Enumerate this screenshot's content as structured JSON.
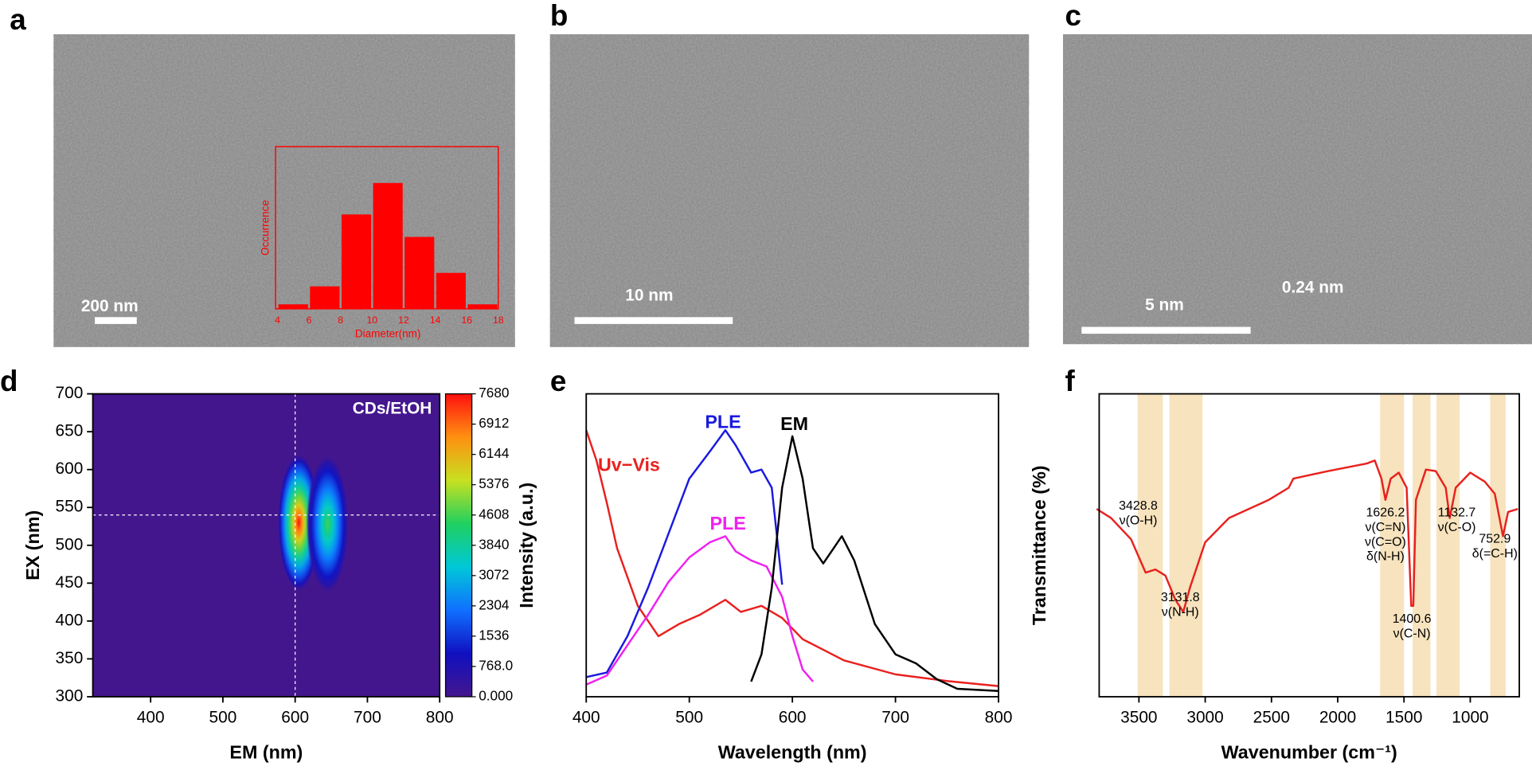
{
  "chart_data": [
    {
      "type": "histogram",
      "panel": "a",
      "scale_bar": "200 nm",
      "x_label": "Diameter(nm)",
      "y_label": "Occurrence",
      "bins": [
        4,
        6,
        8,
        10,
        12,
        14,
        16,
        18
      ],
      "values": [
        1,
        5,
        21,
        28,
        16,
        8,
        1
      ],
      "ylim": [
        0,
        35
      ],
      "color": "#ff0000"
    },
    {
      "type": "image",
      "panel": "b",
      "scale_bar": "10 nm"
    },
    {
      "type": "image",
      "panel": "c",
      "scale_bar": "5 nm",
      "annotation": "0.24 nm"
    },
    {
      "type": "heatmap",
      "panel": "d",
      "annotation": "CDs/EtOH",
      "x_label": "EM (nm)",
      "y_label": "EX (nm)",
      "xlim": [
        320,
        800
      ],
      "xticks": [
        400,
        500,
        600,
        700,
        800
      ],
      "ylim": [
        300,
        700
      ],
      "yticks": [
        300,
        350,
        400,
        450,
        500,
        550,
        600,
        650,
        700
      ],
      "background": "#44168d",
      "peaks": [
        {
          "em": 605,
          "ex": 530,
          "intensity": 7680
        },
        {
          "em": 645,
          "ex": 528,
          "intensity": 4600
        }
      ],
      "crosshair": {
        "em": 600,
        "ex": 540
      },
      "colorbar": {
        "lim": [
          0,
          7680
        ],
        "colors": [
          "#44168d",
          "#1010c0",
          "#1070ff",
          "#00c8d8",
          "#20d060",
          "#c8e020",
          "#ff9010",
          "#ff1010"
        ],
        "ticks": [
          {
            "value": 0,
            "label": "0.000"
          },
          {
            "value": 768,
            "label": "768.0"
          },
          1536,
          2304,
          3072,
          3840,
          4608,
          5376,
          6144,
          6912,
          7680
        ]
      }
    },
    {
      "type": "line",
      "panel": "e",
      "x_label": "Wavelength (nm)",
      "y_label": "Intensity (a.u.)",
      "xlim": [
        400,
        800
      ],
      "xticks": [
        400,
        500,
        600,
        700,
        800
      ],
      "ylim": [
        0,
        1
      ],
      "series": [
        {
          "name": "Uv−Vis",
          "color": "#e8211f",
          "x": [
            400,
            410,
            420,
            430,
            450,
            470,
            490,
            510,
            535,
            550,
            570,
            590,
            610,
            650,
            700,
            750,
            800
          ],
          "values": [
            0.88,
            0.78,
            0.64,
            0.49,
            0.3,
            0.2,
            0.24,
            0.27,
            0.32,
            0.28,
            0.3,
            0.26,
            0.19,
            0.12,
            0.074,
            0.052,
            0.035
          ]
        },
        {
          "name": "PLE",
          "color": "#1a1adf",
          "x": [
            400,
            420,
            440,
            460,
            480,
            500,
            520,
            535,
            545,
            560,
            570,
            580,
            590
          ],
          "values": [
            0.065,
            0.08,
            0.2,
            0.36,
            0.54,
            0.72,
            0.81,
            0.88,
            0.83,
            0.74,
            0.75,
            0.69,
            0.37
          ]
        },
        {
          "name": "PLE",
          "color": "#f020f0",
          "x": [
            400,
            420,
            440,
            460,
            480,
            500,
            520,
            535,
            545,
            560,
            575,
            590,
            600,
            610,
            620
          ],
          "values": [
            0.04,
            0.07,
            0.17,
            0.27,
            0.38,
            0.46,
            0.51,
            0.53,
            0.48,
            0.45,
            0.43,
            0.33,
            0.2,
            0.09,
            0.05
          ]
        },
        {
          "name": "EM",
          "color": "#000000",
          "x": [
            560,
            570,
            580,
            590,
            600,
            610,
            620,
            630,
            640,
            648,
            660,
            680,
            700,
            720,
            740,
            760,
            800
          ],
          "values": [
            0.05,
            0.14,
            0.36,
            0.69,
            0.86,
            0.72,
            0.49,
            0.44,
            0.49,
            0.53,
            0.45,
            0.24,
            0.14,
            0.11,
            0.058,
            0.026,
            0.019
          ]
        }
      ]
    },
    {
      "type": "line",
      "panel": "f",
      "x_label": "Wavenumber (cm⁻¹)",
      "y_label": "Transmittance (%)",
      "xlim": [
        3800,
        630
      ],
      "xticks": [
        3500,
        3000,
        2500,
        2000,
        1500,
        1000
      ],
      "ylim": [
        0,
        1
      ],
      "bands": [
        [
          3510,
          3320
        ],
        [
          3270,
          3020
        ],
        [
          1680,
          1500
        ],
        [
          1435,
          1300
        ],
        [
          1255,
          1080
        ],
        [
          850,
          733
        ]
      ],
      "band_color": "#f7e3bd",
      "series": [
        {
          "color": "#e8211f",
          "x": [
            3819,
            3710,
            3560,
            3450,
            3375,
            3300,
            3225,
            3165,
            3115,
            3000,
            2820,
            2520,
            2370,
            2335,
            2075,
            1780,
            1720,
            1670,
            1640,
            1600,
            1540,
            1480,
            1445,
            1430,
            1410,
            1335,
            1260,
            1185,
            1155,
            1110,
            1000,
            890,
            815,
            753,
            715,
            640
          ],
          "values": [
            0.62,
            0.59,
            0.52,
            0.41,
            0.42,
            0.4,
            0.32,
            0.28,
            0.36,
            0.51,
            0.59,
            0.65,
            0.69,
            0.72,
            0.745,
            0.77,
            0.78,
            0.72,
            0.65,
            0.72,
            0.74,
            0.69,
            0.3,
            0.3,
            0.65,
            0.75,
            0.745,
            0.69,
            0.59,
            0.69,
            0.74,
            0.71,
            0.67,
            0.53,
            0.61,
            0.62
          ]
        }
      ],
      "annotations": [
        {
          "lines": [
            "3428.8",
            "ν(O-H)"
          ]
        },
        {
          "lines": [
            "3131.8",
            "ν(N-H)"
          ]
        },
        {
          "lines": [
            "1626.2",
            "ν(C=N)",
            "ν(C=O)",
            "δ(N-H)"
          ]
        },
        {
          "lines": [
            "1400.6",
            "ν(C-N)"
          ]
        },
        {
          "lines": [
            "1132.7",
            "ν(C-O)"
          ]
        },
        {
          "lines": [
            "752.9",
            "δ(=C-H)"
          ]
        }
      ]
    }
  ]
}
